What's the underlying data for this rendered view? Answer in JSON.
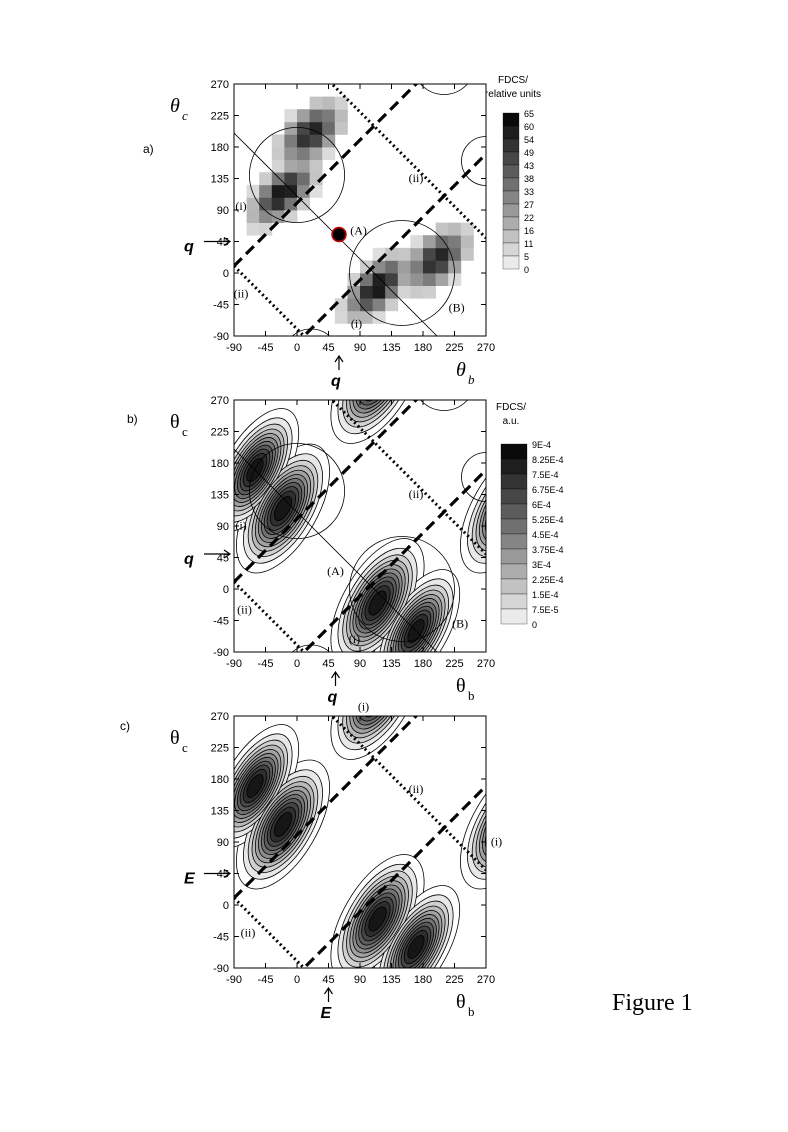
{
  "figure_caption": "Figure 1",
  "colors": {
    "ink": "#000000",
    "marker_edge": "#cc0000",
    "background": "#ffffff"
  },
  "chart_data": [
    {
      "type": "heatmap",
      "panel_label": "a)",
      "xlabel": "θ",
      "xlabel_sub": "b",
      "ylabel": "θ",
      "ylabel_sub": "c",
      "xlim": [
        -90,
        270
      ],
      "ylim": [
        -90,
        270
      ],
      "xticks": [
        "-90",
        "-45",
        "0",
        "45",
        "90",
        "135",
        "180",
        "225",
        "270"
      ],
      "yticks": [
        "-90",
        "-45",
        "0",
        "45",
        "90",
        "135",
        "180",
        "225",
        "270"
      ],
      "colorbar_title": [
        "FDCS/",
        "relative units"
      ],
      "colorbar_ticks": [
        "65",
        "60",
        "54",
        "49",
        "43",
        "38",
        "33",
        "27",
        "22",
        "16",
        "11",
        "5",
        "0"
      ],
      "colorbar_max": 65,
      "axis_arrow_label": "q",
      "axis_arrow_positions": {
        "x": 60,
        "y": 45
      },
      "marker": {
        "x": 60,
        "y": 55
      },
      "region_labels": [
        {
          "text": "(i)",
          "x": -80,
          "y": 90
        },
        {
          "text": "(ii)",
          "x": 170,
          "y": 130
        },
        {
          "text": "(ii)",
          "x": -80,
          "y": -35
        },
        {
          "text": "(i)",
          "x": 85,
          "y": -78
        },
        {
          "text": "(A)",
          "x": 88,
          "y": 55
        },
        {
          "text": "(B)",
          "x": 228,
          "y": -55
        }
      ],
      "peaks": [
        {
          "x": -20,
          "y": 115,
          "sx": 36,
          "sy": 18,
          "amp": 65,
          "angle": 45
        },
        {
          "x": 20,
          "y": 200,
          "sx": 34,
          "sy": 20,
          "amp": 60,
          "angle": 45
        },
        {
          "x": 115,
          "y": -20,
          "sx": 36,
          "sy": 18,
          "amp": 65,
          "angle": 45
        },
        {
          "x": 200,
          "y": 20,
          "sx": 34,
          "sy": 20,
          "amp": 60,
          "angle": 45
        }
      ],
      "bins": 20
    },
    {
      "type": "contour",
      "panel_label": "b)",
      "xlabel": "θ",
      "xlabel_sub": "b",
      "ylabel": "θ",
      "ylabel_sub": "c",
      "xlim": [
        -90,
        270
      ],
      "ylim": [
        -90,
        270
      ],
      "xticks": [
        "-90",
        "-45",
        "0",
        "45",
        "90",
        "135",
        "180",
        "225",
        "270"
      ],
      "yticks": [
        "-90",
        "-45",
        "0",
        "45",
        "90",
        "135",
        "180",
        "225",
        "270"
      ],
      "colorbar_title": [
        "FDCS/",
        "a.u."
      ],
      "colorbar_ticks": [
        "9E-4",
        "8.25E-4",
        "7.5E-4",
        "6.75E-4",
        "6E-4",
        "5.25E-4",
        "4.5E-4",
        "3.75E-4",
        "3E-4",
        "2.25E-4",
        "1.5E-4",
        "7.5E-5",
        "0"
      ],
      "colorbar_max": 0.0009,
      "axis_arrow_label": "q",
      "axis_arrow_positions": {
        "x": 55,
        "y": 50
      },
      "region_labels": [
        {
          "text": "(i)",
          "x": -80,
          "y": 85
        },
        {
          "text": "(ii)",
          "x": 170,
          "y": 130
        },
        {
          "text": "(ii)",
          "x": -75,
          "y": -35
        },
        {
          "text": "(i)",
          "x": 82,
          "y": -77
        },
        {
          "text": "(A)",
          "x": 55,
          "y": 20
        },
        {
          "text": "(B)",
          "x": 233,
          "y": -55
        }
      ],
      "peaks": [
        {
          "x": -20,
          "y": 115,
          "sx": 46,
          "sy": 22,
          "amp": 0.0009,
          "angle": 60
        },
        {
          "x": 115,
          "y": -20,
          "sx": 46,
          "sy": 22,
          "amp": 0.0009,
          "angle": 60
        },
        {
          "x": -60,
          "y": 170,
          "sx": 44,
          "sy": 20,
          "amp": 0.00085,
          "angle": 60
        },
        {
          "x": 170,
          "y": -60,
          "sx": 44,
          "sy": 20,
          "amp": 0.00085,
          "angle": 60
        },
        {
          "x": 115,
          "y": 300,
          "sx": 46,
          "sy": 22,
          "amp": 0.0009,
          "angle": 60
        },
        {
          "x": 300,
          "y": 115,
          "sx": 46,
          "sy": 22,
          "amp": 0.0009,
          "angle": 60
        }
      ],
      "levels": 11
    },
    {
      "type": "contour",
      "panel_label": "c)",
      "xlabel": "θ",
      "xlabel_sub": "b",
      "ylabel": "θ",
      "ylabel_sub": "c",
      "xlim": [
        -90,
        270
      ],
      "ylim": [
        -90,
        270
      ],
      "xticks": [
        "-90",
        "-45",
        "0",
        "45",
        "90",
        "135",
        "180",
        "225",
        "270"
      ],
      "yticks": [
        "-90",
        "-45",
        "0",
        "45",
        "90",
        "135",
        "180",
        "225",
        "270"
      ],
      "axis_arrow_label": "E",
      "axis_arrow_positions": {
        "x": 45,
        "y": 45
      },
      "region_labels": [
        {
          "text": "(i)",
          "x": 95,
          "y": 278
        },
        {
          "text": "(ii)",
          "x": 170,
          "y": 160
        },
        {
          "text": "(i)",
          "x": 285,
          "y": 85
        },
        {
          "text": "(ii)",
          "x": -70,
          "y": -45
        }
      ],
      "peaks": [
        {
          "x": -20,
          "y": 115,
          "sx": 46,
          "sy": 22,
          "amp": 1,
          "angle": 60
        },
        {
          "x": 115,
          "y": -20,
          "sx": 46,
          "sy": 22,
          "amp": 1,
          "angle": 60
        },
        {
          "x": -60,
          "y": 170,
          "sx": 44,
          "sy": 20,
          "amp": 0.95,
          "angle": 60
        },
        {
          "x": 170,
          "y": -60,
          "sx": 44,
          "sy": 20,
          "amp": 0.95,
          "angle": 60
        },
        {
          "x": 115,
          "y": 300,
          "sx": 46,
          "sy": 22,
          "amp": 1,
          "angle": 60
        },
        {
          "x": 300,
          "y": 115,
          "sx": 46,
          "sy": 22,
          "amp": 1,
          "angle": 60
        }
      ],
      "levels": 11
    }
  ]
}
